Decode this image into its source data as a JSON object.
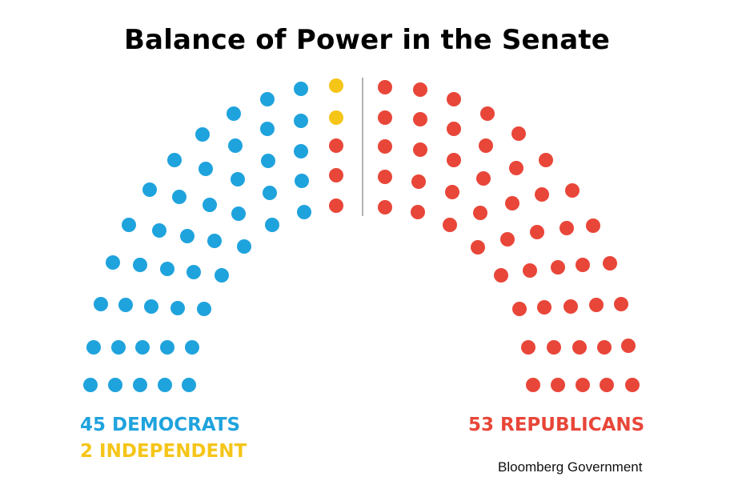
{
  "title": "Balance of Power in the Senate",
  "chart_data": {
    "type": "hemicycle",
    "total_seats": 100,
    "series": [
      {
        "name": "DEMOCRATS",
        "count": 45,
        "color": "#1fa3dd"
      },
      {
        "name": "INDEPENDENT",
        "count": 2,
        "color": "#f5c518"
      },
      {
        "name": "REPUBLICANS",
        "count": 53,
        "color": "#e84639"
      }
    ],
    "legend": [
      {
        "text": "45 DEMOCRATS",
        "color": "#1fa3dd"
      },
      {
        "text": "2 INDEPENDENT",
        "color": "#f5c518"
      },
      {
        "text": "53 REPUBLICANS",
        "color": "#e84639"
      }
    ]
  },
  "source": "Bloomberg Government"
}
